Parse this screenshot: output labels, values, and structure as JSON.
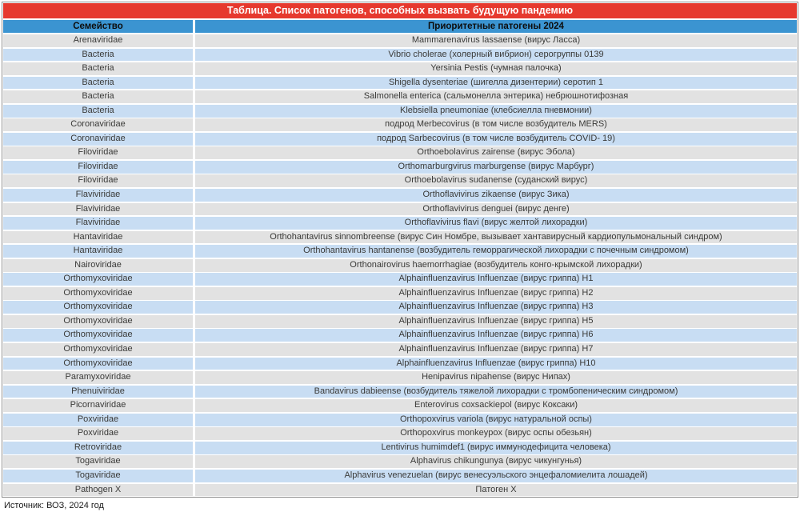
{
  "chart_data": {
    "type": "table",
    "title": "Таблица. Список патогенов, способных вызвать будущую пандемию",
    "columns": [
      "Семейство",
      "Приоритетные патогены 2024"
    ],
    "rows": [
      [
        "Arenaviridae",
        "Mammarenavirus lassaense (вирус Ласса)"
      ],
      [
        "Bacteria",
        "Vibrio cholerae (холерный вибрион) серогруппы 0139"
      ],
      [
        "Bacteria",
        "Yersinia Pestis (чумная палочка)"
      ],
      [
        "Bacteria",
        "Shigella dysenteriae (шигелла дизентерии) серотип 1"
      ],
      [
        "Bacteria",
        "Salmonella enterica (сальмонелла энтерика) небрюшнотифозная"
      ],
      [
        "Bacteria",
        "Klebsiella pneumoniae (клебсиелла пневмонии)"
      ],
      [
        "Coronaviridae",
        "подрод Merbecovirus (в том числе возбудитель MERS)"
      ],
      [
        "Coronaviridae",
        "подрод Sarbecovirus (в том числе возбудитель COVID- 19)"
      ],
      [
        "Filoviridae",
        "Orthoebolavirus zairense (вирус Эбола)"
      ],
      [
        "Filoviridae",
        "Orthomarburgvirus marburgense (вирус Марбург)"
      ],
      [
        "Filoviridae",
        "Orthoebolavirus sudanense (суданский вирус)"
      ],
      [
        "Flaviviridae",
        "Orthoflavivirus zikaense (вирус Зика)"
      ],
      [
        "Flaviviridae",
        "Orthoflavivirus denguei (вирус денге)"
      ],
      [
        "Flaviviridae",
        "Orthoflavivirus flavi (вирус желтой лихорадки)"
      ],
      [
        "Hantaviridae",
        "Orthohantavirus sinnombreense (вирус Син Номбре, вызывает хантавирусный кардиопульмональный синдром)"
      ],
      [
        "Hantaviridae",
        "Orthohantavirus hantanense (возбудитель геморрагической лихорадки с почечным синдромом)"
      ],
      [
        "Nairoviridae",
        "Orthonairovirus haemorrhagiae (возбудитель конго-крымской лихорадки)"
      ],
      [
        "Orthomyxoviridae",
        "Alphainfluenzavirus Influenzae (вирус гриппа) H1"
      ],
      [
        "Orthomyxoviridae",
        "Alphainfluenzavirus Influenzae (вирус гриппа) H2"
      ],
      [
        "Orthomyxoviridae",
        "Alphainfluenzavirus Influenzae (вирус гриппа) H3"
      ],
      [
        "Orthomyxoviridae",
        "Alphainfluenzavirus Influenzae (вирус гриппа) H5"
      ],
      [
        "Orthomyxoviridae",
        "Alphainfluenzavirus Influenzae (вирус гриппа) H6"
      ],
      [
        "Orthomyxoviridae",
        "Alphainfluenzavirus Influenzae (вирус гриппа) H7"
      ],
      [
        "Orthomyxoviridae",
        "Alphainfluenzavirus Influenzae (вирус гриппа) H10"
      ],
      [
        "Paramyxoviridae",
        "Henipavirus nipahense (вирус Нипах)"
      ],
      [
        "Phenuiviridae",
        "Bandavirus dabieense (возбудитель тяжелой лихорадки с тромбопеническим синдромом)"
      ],
      [
        "Picornaviridae",
        "Enterovirus coxsackiepol (вирус Коксаки)"
      ],
      [
        "Poxviridae",
        "Orthopoxvirus variola (вирус натуральной оспы)"
      ],
      [
        "Poxviridae",
        "Orthopoxvirus monkeypox (вирус оспы обезьян)"
      ],
      [
        "Retroviridae",
        "Lentivirus humimdef1 (вирус иммунодефицита человека)"
      ],
      [
        "Togaviridae",
        "Alphavirus chikungunya (вирус чикунгунья)"
      ],
      [
        "Togaviridae",
        "Alphavirus venezuelan (вирус венесуэльского энцефаломиелита лошадей)"
      ],
      [
        "Pathogen X",
        "Патоген X"
      ]
    ],
    "source": "Источник: ВОЗ, 2024 год",
    "legend_position": "none",
    "grid": false
  },
  "colors": {
    "title_bg": "#e6392e",
    "title_text": "#ffffff",
    "header_bg": "#3b94d1",
    "row_gray": "#e2e2e2",
    "row_blue": "#c8ddf3",
    "row_text": "#3a3a38",
    "header_text": "#0d0d0d",
    "border": "#8d8d8d",
    "page_bg": "#ffffff"
  }
}
